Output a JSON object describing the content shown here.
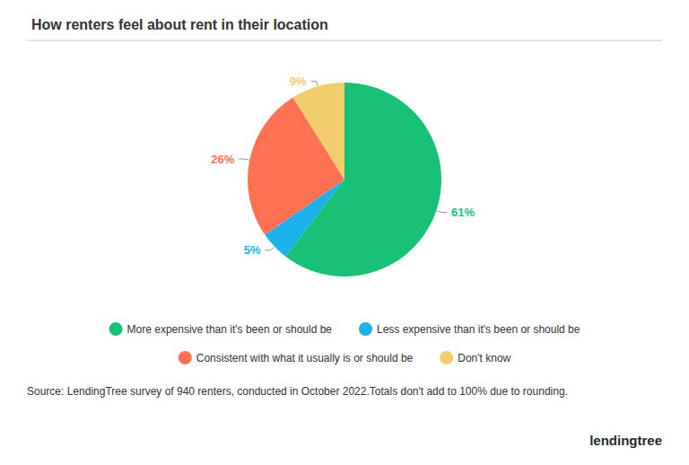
{
  "chart_data": {
    "type": "pie",
    "title": "How renters feel about rent in their location",
    "categories": [
      "More expensive than it's been or should be",
      "Less expensive than it's been or should be",
      "Consistent with what it usually is or should be",
      "Don't know"
    ],
    "values": [
      61,
      5,
      26,
      9
    ],
    "value_labels": [
      "61%",
      "5%",
      "26%",
      "9%"
    ],
    "colors": [
      "#19c177",
      "#1bb3ea",
      "#ff7153",
      "#f2cd6e"
    ],
    "data_labels": true,
    "legend": "bottom",
    "source_note": "Source: LendingTree survey of 940 renters, conducted in October 2022.Totals don't add to 100% due to rounding.",
    "brand": "lendingtree"
  }
}
